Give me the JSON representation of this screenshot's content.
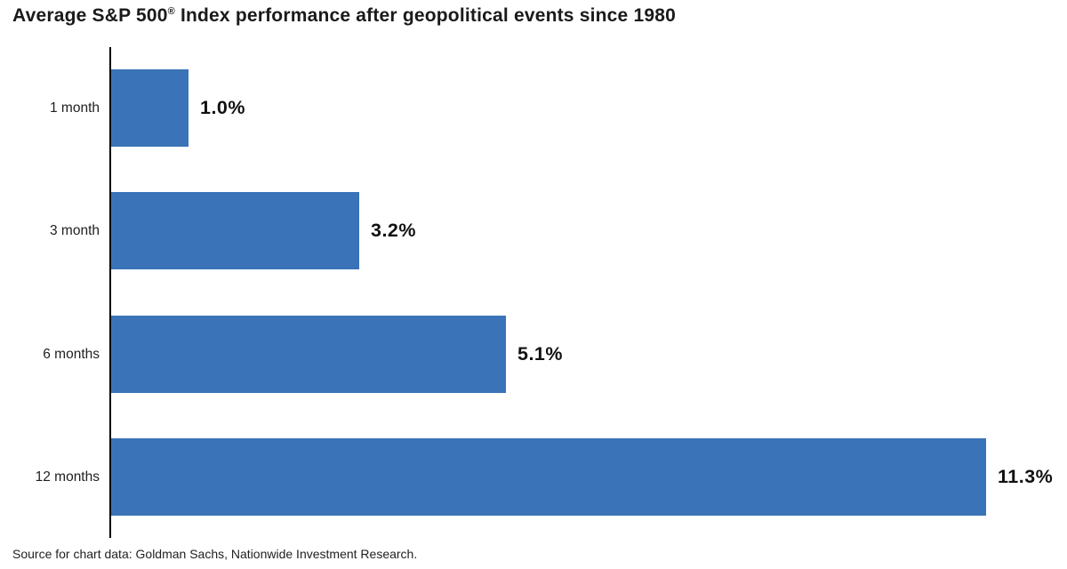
{
  "page": {
    "background": "#ffffff"
  },
  "header": {
    "title": "Average S&P 500® Index performance after geopolitical events since 1980"
  },
  "footer": {
    "source": "Source for chart data: Goldman Sachs, Nationwide Investment Research."
  },
  "colors": {
    "bar": "#3a73b7",
    "axis": "#000000",
    "title_text": "#1a1a1a",
    "label_text": "#1f1f1f"
  },
  "chart_data": {
    "type": "bar",
    "orientation": "horizontal",
    "title": "Average S&P 500® Index performance after geopolitical events since 1980",
    "categories": [
      "1 month",
      "3 month",
      "6 months",
      "12 months"
    ],
    "values": [
      1.0,
      3.2,
      5.1,
      11.3
    ],
    "value_labels": [
      "1.0%",
      "3.2%",
      "5.1%",
      "11.3%"
    ],
    "xlabel": "",
    "ylabel": "",
    "xlim": [
      0,
      11.3
    ],
    "grid": false,
    "legend": false,
    "source": "Source for chart data: Goldman Sachs, Nationwide Investment Research."
  }
}
